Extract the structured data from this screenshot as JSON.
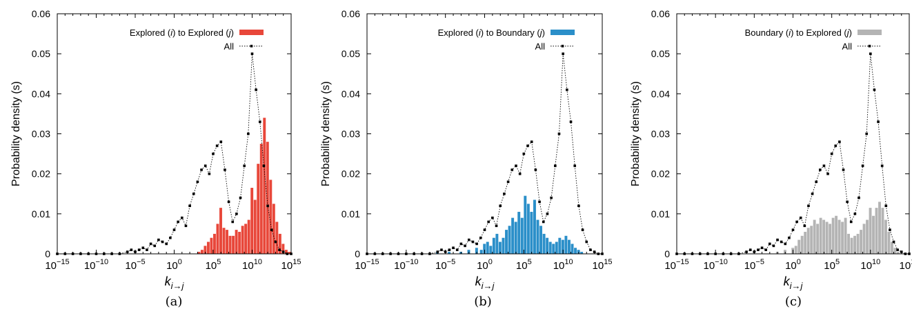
{
  "figure": {
    "captions": [
      "(a)",
      "(b)",
      "(c)"
    ]
  },
  "chart_data": [
    {
      "type": "bar",
      "ylabel": "Probability density (s)",
      "xlabel": {
        "base": "k",
        "subscript": "i→j"
      },
      "xscale": "log10",
      "xlim_exponent": [
        -15,
        15
      ],
      "xticks_exponent": [
        -15,
        -10,
        -5,
        0,
        5,
        10,
        15
      ],
      "ylim": [
        0,
        0.06
      ],
      "yticks": [
        0,
        0.01,
        0.02,
        0.03,
        0.04,
        0.05,
        0.06
      ],
      "legend_position": "top-right",
      "series": [
        {
          "name": "Explored (i) to Explored (j)",
          "kind": "histogram",
          "color": "#e8473a",
          "x_exponent_centers": [
            3.2,
            3.6,
            4.0,
            4.4,
            4.8,
            5.2,
            5.6,
            6.0,
            6.4,
            6.8,
            7.2,
            7.6,
            8.0,
            8.4,
            8.8,
            9.2,
            9.6,
            10.0,
            10.4,
            10.8,
            11.2,
            11.6,
            12.0,
            12.4,
            12.8,
            13.2,
            13.6,
            14.0,
            14.4,
            14.8
          ],
          "values": [
            0.0005,
            0.001,
            0.002,
            0.003,
            0.004,
            0.005,
            0.0075,
            0.0115,
            0.0065,
            0.006,
            0.0045,
            0.0045,
            0.006,
            0.0055,
            0.007,
            0.0075,
            0.0085,
            0.0165,
            0.0135,
            0.0225,
            0.0275,
            0.034,
            0.028,
            0.0185,
            0.0125,
            0.008,
            0.005,
            0.0025,
            0.001,
            0.0005
          ]
        },
        {
          "name": "All",
          "kind": "dotted-line",
          "color": "#000000",
          "x_exponent": [
            -15,
            -14,
            -13,
            -12,
            -11,
            -10,
            -9,
            -8,
            -7,
            -6,
            -5.5,
            -5,
            -4.5,
            -4,
            -3.5,
            -3,
            -2.5,
            -2,
            -1.5,
            -1,
            -0.5,
            0,
            0.5,
            1,
            1.5,
            2,
            2.5,
            3,
            3.5,
            4,
            4.5,
            5,
            5.5,
            6,
            6.5,
            7,
            7.5,
            8,
            8.5,
            9,
            9.5,
            10,
            10.5,
            11,
            11.5,
            12,
            12.5,
            13,
            13.5,
            14,
            14.5,
            15
          ],
          "values": [
            0,
            0,
            0,
            0,
            0,
            0,
            0,
            0,
            0,
            0.0005,
            0.001,
            0.0005,
            0.001,
            0.0015,
            0.001,
            0.0025,
            0.002,
            0.0035,
            0.003,
            0.0025,
            0.004,
            0.006,
            0.008,
            0.009,
            0.007,
            0.012,
            0.015,
            0.018,
            0.021,
            0.022,
            0.02,
            0.025,
            0.027,
            0.028,
            0.021,
            0.013,
            0.008,
            0.01,
            0.014,
            0.022,
            0.03,
            0.05,
            0.041,
            0.033,
            0.022,
            0.012,
            0.006,
            0.003,
            0.001,
            0.0005,
            0,
            0
          ]
        }
      ]
    },
    {
      "type": "bar",
      "ylabel": "Probability density (s)",
      "xlabel": {
        "base": "k",
        "subscript": "i→j"
      },
      "xscale": "log10",
      "xlim_exponent": [
        -15,
        15
      ],
      "xticks_exponent": [
        -15,
        -10,
        -5,
        0,
        5,
        10,
        15
      ],
      "ylim": [
        0,
        0.06
      ],
      "yticks": [
        0,
        0.01,
        0.02,
        0.03,
        0.04,
        0.05,
        0.06
      ],
      "legend_position": "top-right",
      "series": [
        {
          "name": "Explored (i) to Boundary (j)",
          "kind": "histogram",
          "color": "#2b8fc9",
          "x_exponent_centers": [
            -6.0,
            -4.5,
            -3.0,
            -2.0,
            -1.0,
            -0.4,
            0.0,
            0.4,
            0.8,
            1.2,
            1.6,
            2.0,
            2.4,
            2.8,
            3.2,
            3.6,
            4.0,
            4.4,
            4.8,
            5.2,
            5.6,
            6.0,
            6.4,
            6.8,
            7.2,
            7.6,
            8.0,
            8.4,
            8.8,
            9.2,
            9.6,
            10.0,
            10.4,
            10.8,
            11.2,
            11.6,
            12.0,
            12.4
          ],
          "values": [
            0.0005,
            0.0005,
            0.0005,
            0.001,
            0.0015,
            0.001,
            0.0025,
            0.003,
            0.002,
            0.004,
            0.005,
            0.003,
            0.004,
            0.006,
            0.007,
            0.009,
            0.008,
            0.0105,
            0.009,
            0.0145,
            0.0125,
            0.0105,
            0.0135,
            0.0085,
            0.007,
            0.005,
            0.004,
            0.003,
            0.0025,
            0.003,
            0.004,
            0.0035,
            0.0045,
            0.0035,
            0.0025,
            0.0015,
            0.001,
            0.0005
          ]
        },
        {
          "name": "All",
          "kind": "dotted-line",
          "color": "#000000",
          "x_exponent": [
            -15,
            -14,
            -13,
            -12,
            -11,
            -10,
            -9,
            -8,
            -7,
            -6,
            -5.5,
            -5,
            -4.5,
            -4,
            -3.5,
            -3,
            -2.5,
            -2,
            -1.5,
            -1,
            -0.5,
            0,
            0.5,
            1,
            1.5,
            2,
            2.5,
            3,
            3.5,
            4,
            4.5,
            5,
            5.5,
            6,
            6.5,
            7,
            7.5,
            8,
            8.5,
            9,
            9.5,
            10,
            10.5,
            11,
            11.5,
            12,
            12.5,
            13,
            13.5,
            14,
            14.5,
            15
          ],
          "values": [
            0,
            0,
            0,
            0,
            0,
            0,
            0,
            0,
            0,
            0.0005,
            0.001,
            0.0005,
            0.001,
            0.0015,
            0.001,
            0.0025,
            0.002,
            0.0035,
            0.003,
            0.0025,
            0.004,
            0.006,
            0.008,
            0.009,
            0.007,
            0.012,
            0.015,
            0.018,
            0.021,
            0.022,
            0.02,
            0.025,
            0.027,
            0.028,
            0.021,
            0.013,
            0.008,
            0.01,
            0.014,
            0.022,
            0.03,
            0.05,
            0.041,
            0.033,
            0.022,
            0.012,
            0.006,
            0.003,
            0.001,
            0.0005,
            0,
            0
          ]
        }
      ]
    },
    {
      "type": "bar",
      "ylabel": "Probability density (s)",
      "xlabel": {
        "base": "k",
        "subscript": "i→j"
      },
      "xscale": "log10",
      "xlim_exponent": [
        -15,
        15
      ],
      "xticks_exponent": [
        -15,
        -10,
        -5,
        0,
        5,
        10,
        15
      ],
      "ylim": [
        0,
        0.06
      ],
      "yticks": [
        0,
        0.01,
        0.02,
        0.03,
        0.04,
        0.05,
        0.06
      ],
      "legend_position": "top-right",
      "series": [
        {
          "name": "Boundary (i) to Explored (j)",
          "kind": "histogram",
          "color": "#b4b4b4",
          "x_exponent_centers": [
            -2.0,
            -1.0,
            0.0,
            0.4,
            0.8,
            1.2,
            1.6,
            2.0,
            2.4,
            2.8,
            3.2,
            3.6,
            4.0,
            4.4,
            4.8,
            5.2,
            5.6,
            6.0,
            6.4,
            6.8,
            7.2,
            7.6,
            8.0,
            8.4,
            8.8,
            9.2,
            9.6,
            10.0,
            10.4,
            10.8,
            11.2,
            11.6,
            12.0,
            12.4,
            12.8,
            13.2,
            13.6
          ],
          "values": [
            0.0005,
            0.001,
            0.0015,
            0.002,
            0.0035,
            0.0045,
            0.0055,
            0.0065,
            0.007,
            0.0085,
            0.0075,
            0.009,
            0.0085,
            0.008,
            0.0075,
            0.009,
            0.0095,
            0.0085,
            0.008,
            0.009,
            0.005,
            0.004,
            0.0045,
            0.005,
            0.006,
            0.0075,
            0.0085,
            0.0115,
            0.0095,
            0.0115,
            0.013,
            0.0115,
            0.0085,
            0.0055,
            0.003,
            0.0015,
            0.0005
          ]
        },
        {
          "name": "All",
          "kind": "dotted-line",
          "color": "#000000",
          "x_exponent": [
            -15,
            -14,
            -13,
            -12,
            -11,
            -10,
            -9,
            -8,
            -7,
            -6,
            -5.5,
            -5,
            -4.5,
            -4,
            -3.5,
            -3,
            -2.5,
            -2,
            -1.5,
            -1,
            -0.5,
            0,
            0.5,
            1,
            1.5,
            2,
            2.5,
            3,
            3.5,
            4,
            4.5,
            5,
            5.5,
            6,
            6.5,
            7,
            7.5,
            8,
            8.5,
            9,
            9.5,
            10,
            10.5,
            11,
            11.5,
            12,
            12.5,
            13,
            13.5,
            14,
            14.5,
            15
          ],
          "values": [
            0,
            0,
            0,
            0,
            0,
            0,
            0,
            0,
            0,
            0.0005,
            0.001,
            0.0005,
            0.001,
            0.0015,
            0.001,
            0.0025,
            0.002,
            0.0035,
            0.003,
            0.0025,
            0.004,
            0.006,
            0.008,
            0.009,
            0.007,
            0.012,
            0.015,
            0.018,
            0.021,
            0.022,
            0.02,
            0.025,
            0.027,
            0.028,
            0.021,
            0.013,
            0.008,
            0.01,
            0.014,
            0.022,
            0.03,
            0.05,
            0.041,
            0.033,
            0.022,
            0.012,
            0.006,
            0.003,
            0.001,
            0.0005,
            0,
            0
          ]
        }
      ]
    }
  ]
}
